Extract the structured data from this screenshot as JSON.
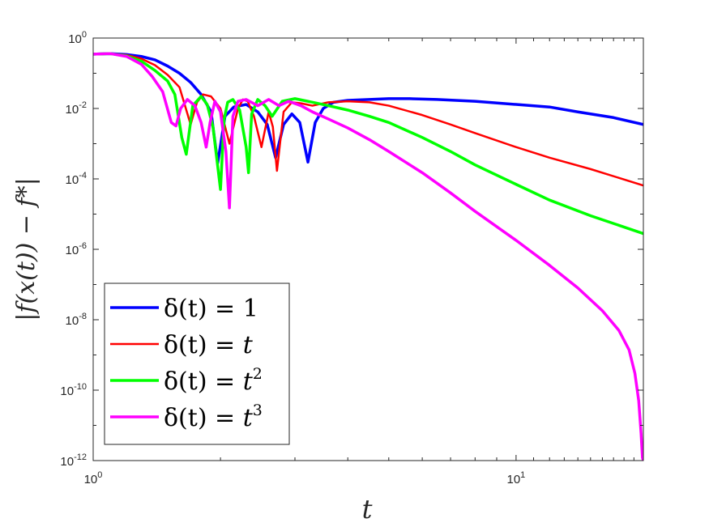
{
  "chart_data": {
    "type": "line",
    "xscale": "log",
    "yscale": "log",
    "xlim": [
      1,
      20
    ],
    "ylim": [
      1e-12,
      1
    ],
    "xlabel": "t",
    "ylabel": "|f(x(t)) − f*|",
    "x_ticks": [
      {
        "value": 1,
        "base": "10",
        "exp": "0"
      },
      {
        "value": 10,
        "base": "10",
        "exp": "1"
      }
    ],
    "y_ticks": [
      {
        "value": 1,
        "base": "10",
        "exp": "0"
      },
      {
        "value": 0.01,
        "base": "10",
        "exp": "-2"
      },
      {
        "value": 0.0001,
        "base": "10",
        "exp": "-4"
      },
      {
        "value": 1e-06,
        "base": "10",
        "exp": "-6"
      },
      {
        "value": 1e-08,
        "base": "10",
        "exp": "-8"
      },
      {
        "value": 1e-10,
        "base": "10",
        "exp": "-10"
      },
      {
        "value": 1e-12,
        "base": "10",
        "exp": "-12"
      }
    ],
    "grid": false,
    "legend_position": "bottom-left",
    "series": [
      {
        "name": "δ(t) = 1",
        "legend": {
          "lhs": "δ(t) = ",
          "rhs": "1",
          "sup": ""
        },
        "color": "#0000ff",
        "width": 3.5,
        "x": [
          1.0,
          1.1,
          1.2,
          1.3,
          1.4,
          1.5,
          1.6,
          1.7,
          1.8,
          1.9,
          1.97,
          2.05,
          2.15,
          2.3,
          2.45,
          2.58,
          2.7,
          2.82,
          2.95,
          3.08,
          3.22,
          3.35,
          3.5,
          3.7,
          4.0,
          4.5,
          5.0,
          5.6,
          6.5,
          8,
          10,
          12,
          14,
          17,
          20
        ],
        "y": [
          0.35,
          0.36,
          0.34,
          0.3,
          0.24,
          0.16,
          0.1,
          0.055,
          0.025,
          0.008,
          0.00028,
          0.006,
          0.011,
          0.013,
          0.008,
          0.0035,
          0.0004,
          0.0035,
          0.007,
          0.004,
          0.0003,
          0.004,
          0.01,
          0.015,
          0.017,
          0.018,
          0.019,
          0.019,
          0.018,
          0.016,
          0.013,
          0.011,
          0.008,
          0.0055,
          0.0035
        ]
      },
      {
        "name": "δ(t) = t",
        "legend": {
          "lhs": "δ(t) = ",
          "rhs": "t",
          "sup": ""
        },
        "color": "#ff0000",
        "width": 2.5,
        "x": [
          1.0,
          1.1,
          1.2,
          1.3,
          1.4,
          1.5,
          1.6,
          1.7,
          1.76,
          1.82,
          1.9,
          2.0,
          2.1,
          2.2,
          2.26,
          2.32,
          2.4,
          2.5,
          2.6,
          2.66,
          2.72,
          2.82,
          2.95,
          3.1,
          3.3,
          3.6,
          4,
          4.5,
          5,
          6,
          7,
          8,
          10,
          12,
          15,
          20
        ],
        "y": [
          0.35,
          0.36,
          0.33,
          0.26,
          0.17,
          0.09,
          0.04,
          0.0035,
          0.015,
          0.025,
          0.022,
          0.01,
          0.001,
          0.01,
          0.018,
          0.016,
          0.006,
          0.0008,
          0.008,
          0.003,
          0.00017,
          0.008,
          0.015,
          0.014,
          0.012,
          0.015,
          0.016,
          0.015,
          0.012,
          0.0065,
          0.0035,
          0.002,
          0.0008,
          0.0004,
          0.00019,
          6.5e-05
        ]
      },
      {
        "name": "δ(t) = t²",
        "legend": {
          "lhs": "δ(t) = ",
          "rhs": "t",
          "sup": "2"
        },
        "color": "#00ff00",
        "width": 3.5,
        "x": [
          1.0,
          1.1,
          1.2,
          1.3,
          1.4,
          1.5,
          1.56,
          1.62,
          1.66,
          1.72,
          1.8,
          1.86,
          1.92,
          2.0,
          2.04,
          2.08,
          2.14,
          2.22,
          2.3,
          2.33,
          2.37,
          2.45,
          2.55,
          2.65,
          2.8,
          3.0,
          3.3,
          3.6,
          4,
          4.5,
          5,
          6,
          7,
          8,
          10,
          12,
          15,
          20
        ],
        "y": [
          0.35,
          0.36,
          0.31,
          0.22,
          0.12,
          0.06,
          0.025,
          0.0015,
          0.0005,
          0.012,
          0.022,
          0.013,
          0.003,
          5e-05,
          0.005,
          0.015,
          0.018,
          0.009,
          0.0008,
          0.00015,
          0.007,
          0.018,
          0.012,
          0.006,
          0.016,
          0.019,
          0.015,
          0.012,
          0.009,
          0.006,
          0.004,
          0.0015,
          0.0006,
          0.00025,
          7e-05,
          2.5e-05,
          9e-06,
          2.8e-06
        ]
      },
      {
        "name": "δ(t) = t³",
        "legend": {
          "lhs": "δ(t) = ",
          "rhs": "t",
          "sup": "3"
        },
        "color": "#ff00ff",
        "width": 3.5,
        "x": [
          1.0,
          1.1,
          1.2,
          1.3,
          1.38,
          1.46,
          1.53,
          1.57,
          1.61,
          1.67,
          1.74,
          1.8,
          1.85,
          1.89,
          1.94,
          2.0,
          2.06,
          2.1,
          2.14,
          2.2,
          2.3,
          2.45,
          2.6,
          2.75,
          2.9,
          3.1,
          3.3,
          3.6,
          4,
          4.5,
          5,
          6,
          7,
          8,
          10,
          12,
          14,
          16,
          17.5,
          18.5,
          19.1,
          19.5,
          19.75,
          19.9,
          20
        ],
        "y": [
          0.35,
          0.36,
          0.3,
          0.18,
          0.08,
          0.03,
          0.004,
          0.0032,
          0.01,
          0.018,
          0.012,
          0.004,
          0.0008,
          0.004,
          0.016,
          0.008,
          0.0006,
          1.5e-05,
          0.006,
          0.016,
          0.018,
          0.012,
          0.018,
          0.012,
          0.016,
          0.012,
          0.008,
          0.005,
          0.0028,
          0.0013,
          0.0006,
          0.00015,
          4e-05,
          1.2e-05,
          1.8e-06,
          3.5e-07,
          8e-08,
          1.8e-08,
          5e-09,
          1.4e-09,
          3e-10,
          5e-11,
          6e-12,
          1.2e-12,
          1e-12
        ]
      }
    ]
  }
}
